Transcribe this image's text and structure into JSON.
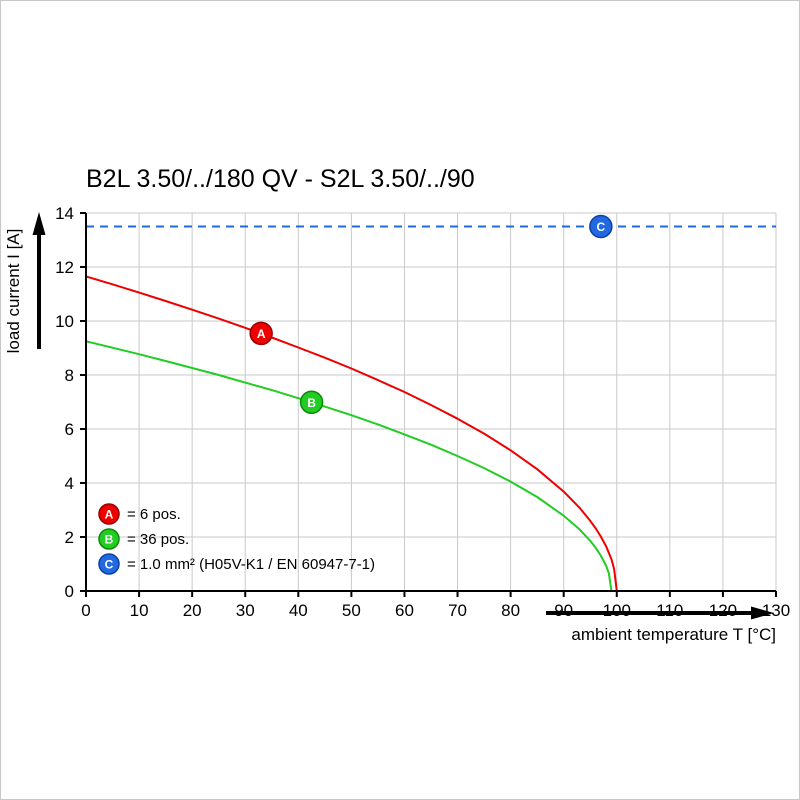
{
  "chart_data": {
    "type": "line",
    "title": "B2L 3.50/../180 QV - S2L 3.50/../90",
    "xlabel": "ambient temperature T [°C]",
    "ylabel": "load current I [A]",
    "xlim": [
      0,
      130
    ],
    "ylim": [
      0,
      14
    ],
    "x_ticks": [
      0,
      10,
      20,
      30,
      40,
      50,
      60,
      70,
      80,
      90,
      100,
      110,
      120,
      130
    ],
    "y_ticks": [
      0,
      2,
      4,
      6,
      8,
      10,
      12,
      14
    ],
    "grid": true,
    "legend_position": "inside-bottom-left",
    "series": [
      {
        "id": "A",
        "legend_label": "= 6 pos.",
        "color": "#ee0000",
        "marker_border": "#990000",
        "line_style": "solid",
        "marker_at": {
          "x": 33,
          "y": 9.54
        },
        "points": [
          [
            0,
            11.65
          ],
          [
            5,
            11.36
          ],
          [
            10,
            11.05
          ],
          [
            15,
            10.74
          ],
          [
            20,
            10.42
          ],
          [
            25,
            10.09
          ],
          [
            30,
            9.75
          ],
          [
            35,
            9.39
          ],
          [
            40,
            9.02
          ],
          [
            45,
            8.64
          ],
          [
            50,
            8.24
          ],
          [
            55,
            7.81
          ],
          [
            60,
            7.37
          ],
          [
            65,
            6.89
          ],
          [
            70,
            6.38
          ],
          [
            75,
            5.83
          ],
          [
            80,
            5.21
          ],
          [
            85,
            4.51
          ],
          [
            90,
            3.68
          ],
          [
            93,
            3.08
          ],
          [
            95,
            2.6
          ],
          [
            96,
            2.33
          ],
          [
            97,
            2.02
          ],
          [
            98,
            1.65
          ],
          [
            99,
            1.17
          ],
          [
            99.5,
            0.82
          ],
          [
            100,
            0
          ]
        ]
      },
      {
        "id": "B",
        "legend_label": "= 36 pos.",
        "color": "#22cc22",
        "marker_border": "#0a8a0a",
        "line_style": "solid",
        "marker_at": {
          "x": 42.5,
          "y": 6.99
        },
        "points": [
          [
            0,
            9.25
          ],
          [
            5,
            9.01
          ],
          [
            10,
            8.77
          ],
          [
            15,
            8.52
          ],
          [
            20,
            8.26
          ],
          [
            25,
            8.0
          ],
          [
            30,
            7.72
          ],
          [
            35,
            7.44
          ],
          [
            40,
            7.14
          ],
          [
            45,
            6.83
          ],
          [
            50,
            6.51
          ],
          [
            55,
            6.17
          ],
          [
            60,
            5.8
          ],
          [
            65,
            5.42
          ],
          [
            70,
            5.0
          ],
          [
            75,
            4.55
          ],
          [
            80,
            4.05
          ],
          [
            85,
            3.48
          ],
          [
            90,
            2.79
          ],
          [
            93,
            2.28
          ],
          [
            95,
            1.86
          ],
          [
            96,
            1.61
          ],
          [
            97,
            1.31
          ],
          [
            98,
            0.93
          ],
          [
            98.5,
            0.66
          ],
          [
            99,
            0
          ]
        ]
      },
      {
        "id": "C",
        "legend_label": "= 1.0 mm² (H05V-K1 / EN 60947-7-1)",
        "color": "#2269e0",
        "marker_border": "#0b3fa8",
        "line_style": "dashed",
        "marker_at": {
          "x": 97,
          "y": 13.5
        },
        "points": [
          [
            0,
            13.5
          ],
          [
            130,
            13.5
          ]
        ]
      }
    ]
  }
}
